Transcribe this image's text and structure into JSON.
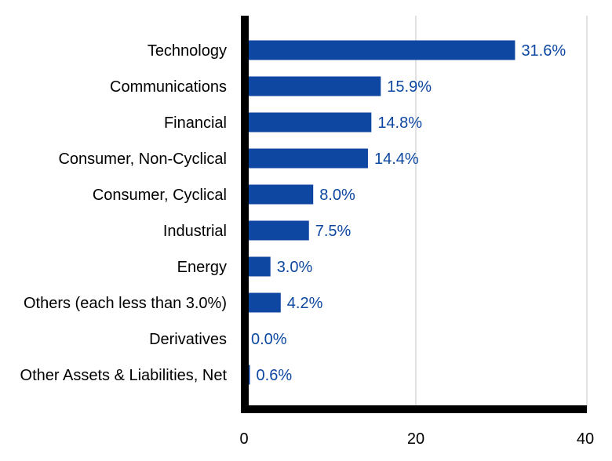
{
  "chart_data": {
    "type": "bar",
    "orientation": "horizontal",
    "categories": [
      "Technology",
      "Communications",
      "Financial",
      "Consumer, Non-Cyclical",
      "Consumer, Cyclical",
      "Industrial",
      "Energy",
      "Others (each less than 3.0%)",
      "Derivatives",
      "Other Assets & Liabilities, Net"
    ],
    "values": [
      31.6,
      15.9,
      14.8,
      14.4,
      8.0,
      7.5,
      3.0,
      4.2,
      0.0,
      0.6
    ],
    "value_labels": [
      "31.6%",
      "15.9%",
      "14.8%",
      "14.4%",
      "8.0%",
      "7.5%",
      "3.0%",
      "4.2%",
      "0.0%",
      "0.6%"
    ],
    "xlim": [
      0,
      40
    ],
    "x_ticks": [
      "0",
      "20",
      "40"
    ],
    "grid": "vertical",
    "legend": "none",
    "title": "",
    "xlabel": "",
    "ylabel": ""
  },
  "colors": {
    "bar": "#0d47a1",
    "value_label": "#0d47a1",
    "axis": "#000000",
    "grid": "#d9d9d9"
  }
}
